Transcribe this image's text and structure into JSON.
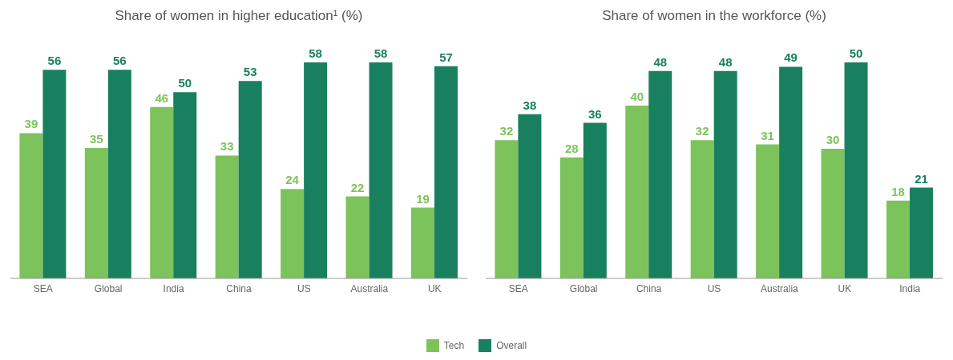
{
  "chart_data": [
    {
      "type": "bar",
      "title": "Share of women in higher education¹ (%)",
      "categories": [
        "SEA",
        "Global",
        "India",
        "China",
        "US",
        "Australia",
        "UK"
      ],
      "series": [
        {
          "name": "Tech",
          "color": "#7dc35b",
          "values": [
            39,
            35,
            46,
            33,
            24,
            22,
            19
          ]
        },
        {
          "name": "Overall",
          "color": "#18805e",
          "values": [
            56,
            56,
            50,
            53,
            58,
            58,
            57
          ]
        }
      ],
      "data_labels": true,
      "legend": "bottom"
    },
    {
      "type": "bar",
      "title": "Share of women in the workforce (%)",
      "categories": [
        "SEA",
        "Global",
        "China",
        "US",
        "Australia",
        "UK",
        "India"
      ],
      "series": [
        {
          "name": "Tech",
          "color": "#7dc35b",
          "values": [
            32,
            28,
            40,
            32,
            31,
            30,
            18
          ]
        },
        {
          "name": "Overall",
          "color": "#18805e",
          "values": [
            38,
            36,
            48,
            48,
            49,
            50,
            21
          ]
        }
      ],
      "data_labels": true,
      "legend": "bottom"
    }
  ]
}
